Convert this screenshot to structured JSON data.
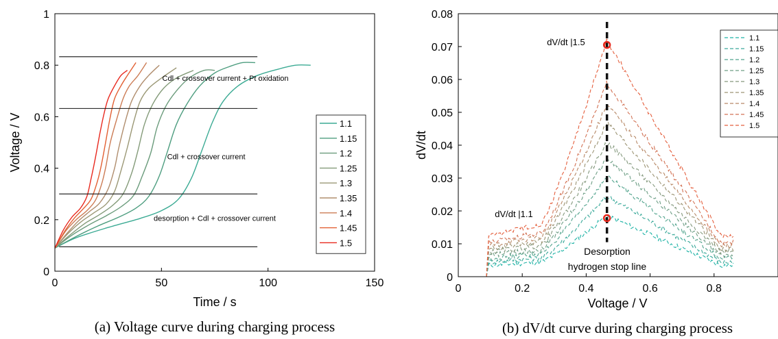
{
  "chart_data": [
    {
      "type": "line",
      "caption": "(a) Voltage curve during charging process",
      "xlabel": "Time / s",
      "ylabel": "Voltage / V",
      "xlim": [
        0,
        150
      ],
      "ylim": [
        0,
        1
      ],
      "xticks": [
        "0",
        "50",
        "100",
        "150"
      ],
      "yticks": [
        "0",
        "0.2",
        "0.4",
        "0.6",
        "0.8",
        "1"
      ],
      "grid": false,
      "legend_position": "right",
      "boundary_lines": [
        {
          "y": 0.095,
          "x": [
            2,
            95
          ]
        },
        {
          "y": 0.3,
          "x": [
            2,
            95
          ]
        },
        {
          "y": 0.632,
          "x": [
            2,
            95
          ]
        },
        {
          "y": 0.833,
          "x": [
            2,
            95
          ]
        }
      ],
      "annotations": [
        {
          "text": "Cdl + crossover current + Pt oxidation",
          "x": 80,
          "y": 0.74
        },
        {
          "text": "Cdl + crossover current",
          "x": 71,
          "y": 0.435
        },
        {
          "text": "desorption + Cdl + crossover current",
          "x": 75,
          "y": 0.195
        }
      ],
      "series": [
        {
          "name": "1.1",
          "color": "#3aaa93",
          "points": [
            [
              0,
              0.09
            ],
            [
              10,
              0.13
            ],
            [
              25,
              0.17
            ],
            [
              40,
              0.205
            ],
            [
              50,
              0.235
            ],
            [
              58,
              0.28
            ],
            [
              64,
              0.36
            ],
            [
              69,
              0.47
            ],
            [
              74,
              0.58
            ],
            [
              79,
              0.66
            ],
            [
              86,
              0.72
            ],
            [
              95,
              0.76
            ],
            [
              105,
              0.785
            ],
            [
              113,
              0.8
            ],
            [
              120,
              0.8
            ]
          ]
        },
        {
          "name": "1.15",
          "color": "#4d9d7f",
          "points": [
            [
              0,
              0.09
            ],
            [
              10,
              0.135
            ],
            [
              20,
              0.175
            ],
            [
              30,
              0.21
            ],
            [
              38,
              0.245
            ],
            [
              44,
              0.29
            ],
            [
              49,
              0.37
            ],
            [
              53,
              0.47
            ],
            [
              57,
              0.57
            ],
            [
              62,
              0.65
            ],
            [
              68,
              0.72
            ],
            [
              75,
              0.77
            ],
            [
              82,
              0.795
            ],
            [
              88,
              0.81
            ],
            [
              94,
              0.81
            ]
          ]
        },
        {
          "name": "1.2",
          "color": "#6a9b7b",
          "points": [
            [
              0,
              0.09
            ],
            [
              8,
              0.14
            ],
            [
              16,
              0.18
            ],
            [
              24,
              0.215
            ],
            [
              31,
              0.25
            ],
            [
              37,
              0.295
            ],
            [
              41,
              0.37
            ],
            [
              45,
              0.46
            ],
            [
              48,
              0.56
            ],
            [
              52,
              0.64
            ],
            [
              57,
              0.7
            ],
            [
              63,
              0.75
            ],
            [
              70,
              0.78
            ],
            [
              75,
              0.78
            ]
          ]
        },
        {
          "name": "1.25",
          "color": "#839a78",
          "points": [
            [
              0,
              0.09
            ],
            [
              7,
              0.14
            ],
            [
              14,
              0.185
            ],
            [
              21,
              0.22
            ],
            [
              27,
              0.255
            ],
            [
              32,
              0.3
            ],
            [
              36,
              0.38
            ],
            [
              39,
              0.47
            ],
            [
              42,
              0.57
            ],
            [
              46,
              0.65
            ],
            [
              51,
              0.71
            ],
            [
              57,
              0.75
            ],
            [
              65,
              0.78
            ]
          ]
        },
        {
          "name": "1.3",
          "color": "#9a9774",
          "points": [
            [
              0,
              0.09
            ],
            [
              6,
              0.145
            ],
            [
              12,
              0.19
            ],
            [
              18,
              0.225
            ],
            [
              24,
              0.26
            ],
            [
              28,
              0.31
            ],
            [
              31,
              0.39
            ],
            [
              34,
              0.48
            ],
            [
              37,
              0.58
            ],
            [
              40,
              0.66
            ],
            [
              44,
              0.71
            ],
            [
              50,
              0.75
            ],
            [
              57,
              0.79
            ]
          ]
        },
        {
          "name": "1.35",
          "color": "#b08d6d",
          "points": [
            [
              0,
              0.09
            ],
            [
              6,
              0.15
            ],
            [
              11,
              0.195
            ],
            [
              16,
              0.23
            ],
            [
              21,
              0.265
            ],
            [
              25,
              0.32
            ],
            [
              28,
              0.4
            ],
            [
              30,
              0.48
            ],
            [
              33,
              0.58
            ],
            [
              36,
              0.66
            ],
            [
              40,
              0.72
            ],
            [
              44,
              0.76
            ],
            [
              49,
              0.8
            ]
          ]
        },
        {
          "name": "1.4",
          "color": "#cc7c55",
          "points": [
            [
              0,
              0.09
            ],
            [
              5,
              0.155
            ],
            [
              10,
              0.2
            ],
            [
              15,
              0.235
            ],
            [
              19,
              0.275
            ],
            [
              22,
              0.34
            ],
            [
              24,
              0.41
            ],
            [
              26,
              0.5
            ],
            [
              29,
              0.59
            ],
            [
              32,
              0.67
            ],
            [
              35,
              0.72
            ],
            [
              39,
              0.76
            ],
            [
              43,
              0.81
            ]
          ]
        },
        {
          "name": "1.45",
          "color": "#e25f32",
          "points": [
            [
              0,
              0.09
            ],
            [
              5,
              0.16
            ],
            [
              9,
              0.205
            ],
            [
              13,
              0.24
            ],
            [
              17,
              0.28
            ],
            [
              20,
              0.35
            ],
            [
              22,
              0.42
            ],
            [
              24,
              0.51
            ],
            [
              26,
              0.6
            ],
            [
              28,
              0.67
            ],
            [
              31,
              0.72
            ],
            [
              34,
              0.76
            ],
            [
              38,
              0.81
            ]
          ]
        },
        {
          "name": "1.5",
          "color": "#e8281e",
          "points": [
            [
              0,
              0.09
            ],
            [
              4,
              0.16
            ],
            [
              8,
              0.21
            ],
            [
              12,
              0.245
            ],
            [
              15,
              0.29
            ],
            [
              17,
              0.36
            ],
            [
              19,
              0.44
            ],
            [
              21,
              0.53
            ],
            [
              23,
              0.61
            ],
            [
              25,
              0.67
            ],
            [
              28,
              0.72
            ],
            [
              31,
              0.76
            ],
            [
              34,
              0.78
            ]
          ]
        }
      ]
    },
    {
      "type": "line",
      "caption": "(b) dV/dt curve during charging process",
      "xlabel": "Voltage / V",
      "ylabel": "dV/dt",
      "xlim": [
        0,
        1
      ],
      "ylim": [
        0,
        0.08
      ],
      "xticks": [
        "0",
        "0.2",
        "0.4",
        "0.6",
        "0.8"
      ],
      "yticks": [
        "0",
        "0.01",
        "0.02",
        "0.03",
        "0.04",
        "0.05",
        "0.06",
        "0.07",
        "0.08"
      ],
      "grid": false,
      "legend_position": "top-right",
      "stop_line": {
        "x": 0.465,
        "label_lines": [
          "Desorption",
          "hydrogen stop line"
        ]
      },
      "markers": [
        {
          "label": "dV/dt |1.5",
          "x": 0.465,
          "y": 0.0705,
          "color": "#e8281e"
        },
        {
          "label": "dV/dt |1.1",
          "x": 0.465,
          "y": 0.0178,
          "color": "#e8281e"
        }
      ],
      "series": [
        {
          "name": "1.1",
          "color": "#1fb3a6",
          "base": 0.0035,
          "peak": 0.0185,
          "x_start": 0.095,
          "x_end": 0.86
        },
        {
          "name": "1.15",
          "color": "#3aa99a",
          "base": 0.0045,
          "peak": 0.0245,
          "x_start": 0.095,
          "x_end": 0.86
        },
        {
          "name": "1.2",
          "color": "#52a48d",
          "base": 0.0055,
          "peak": 0.0305,
          "x_start": 0.095,
          "x_end": 0.86
        },
        {
          "name": "1.25",
          "color": "#6d9e85",
          "base": 0.0065,
          "peak": 0.036,
          "x_start": 0.095,
          "x_end": 0.86
        },
        {
          "name": "1.3",
          "color": "#83987c",
          "base": 0.0075,
          "peak": 0.041,
          "x_start": 0.095,
          "x_end": 0.86
        },
        {
          "name": "1.35",
          "color": "#9c9474",
          "base": 0.0085,
          "peak": 0.047,
          "x_start": 0.095,
          "x_end": 0.86
        },
        {
          "name": "1.4",
          "color": "#b78866",
          "base": 0.0095,
          "peak": 0.0525,
          "x_start": 0.095,
          "x_end": 0.86
        },
        {
          "name": "1.45",
          "color": "#d27254",
          "base": 0.0105,
          "peak": 0.059,
          "x_start": 0.095,
          "x_end": 0.86
        },
        {
          "name": "1.5",
          "color": "#e45e3c",
          "base": 0.0125,
          "peak": 0.072,
          "x_start": 0.095,
          "x_end": 0.86
        }
      ]
    }
  ]
}
